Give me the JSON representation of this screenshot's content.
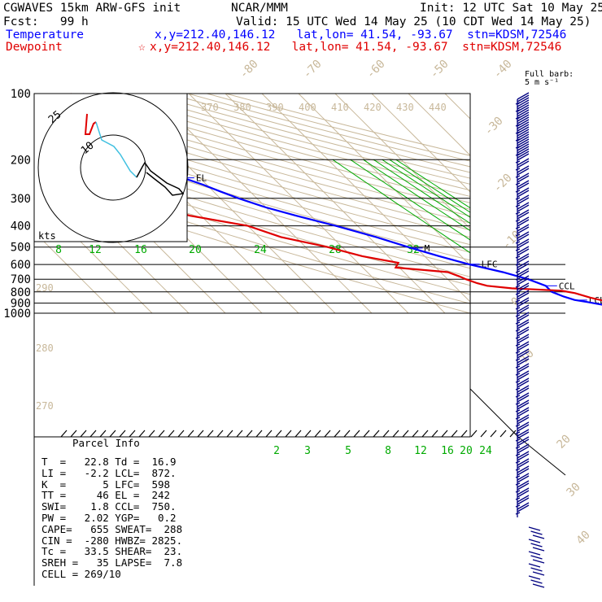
{
  "header": {
    "model_line": "CGWAVES 15km ARW-GFS init",
    "org": "NCAR/MMM",
    "init_line": "Init: 12 UTC Sat 10 May 25",
    "fcst_line": "Fcst:   99 h",
    "valid_line": "Valid: 15 UTC Wed 14 May 25 (10 CDT Wed 14 May 25)",
    "temp_label": "Temperature",
    "temp_loc": "x,y=212.40,146.12   lat,lon= 41.54, -93.67  stn=KDSM,72546",
    "dew_label": "Dewpoint",
    "dew_loc": "x,y=212.40,146.12   lat,lon= 41.54, -93.67  stn=KDSM,72546",
    "dew_marker": "☆",
    "colors": {
      "temperature": "#0000ff",
      "dewpoint": "#e00000",
      "text": "#000000"
    }
  },
  "barb_legend": {
    "line1": "Full barb:",
    "line2": "5 m s⁻¹"
  },
  "chart_data": {
    "type": "line",
    "title": "",
    "pressure_levels": [
      100,
      200,
      300,
      400,
      500,
      600,
      700,
      800,
      900,
      1000
    ],
    "pressure_range": [
      100,
      1000
    ],
    "temperature_series": {
      "name": "Temperature",
      "color": "#0000ff",
      "points": [
        [
          100,
          -69
        ],
        [
          120,
          -69
        ],
        [
          140,
          -67
        ],
        [
          160,
          -67
        ],
        [
          180,
          -67
        ],
        [
          200,
          -67
        ],
        [
          220,
          -67
        ],
        [
          240,
          -65
        ],
        [
          260,
          -61
        ],
        [
          280,
          -58
        ],
        [
          300,
          -55
        ],
        [
          330,
          -50
        ],
        [
          360,
          -44
        ],
        [
          400,
          -36
        ],
        [
          450,
          -28
        ],
        [
          500,
          -22
        ],
        [
          550,
          -16
        ],
        [
          600,
          -10
        ],
        [
          650,
          -3
        ],
        [
          700,
          2
        ],
        [
          750,
          5
        ],
        [
          780,
          5
        ],
        [
          800,
          5
        ],
        [
          840,
          7
        ],
        [
          870,
          9
        ],
        [
          890,
          12
        ],
        [
          920,
          16
        ],
        [
          950,
          19
        ],
        [
          960,
          20
        ]
      ]
    },
    "dewpoint_series": {
      "name": "Dewpoint",
      "color": "#e00000",
      "points": [
        [
          100,
          -72
        ],
        [
          110,
          -77
        ],
        [
          120,
          -79
        ],
        [
          140,
          -79
        ],
        [
          160,
          -82
        ],
        [
          180,
          -87
        ],
        [
          200,
          -90
        ],
        [
          220,
          -86
        ],
        [
          240,
          -78
        ],
        [
          260,
          -72
        ],
        [
          280,
          -70
        ],
        [
          300,
          -72
        ],
        [
          320,
          -76
        ],
        [
          340,
          -77
        ],
        [
          360,
          -73
        ],
        [
          400,
          -60
        ],
        [
          450,
          -54
        ],
        [
          500,
          -44
        ],
        [
          550,
          -37
        ],
        [
          590,
          -29
        ],
        [
          620,
          -31
        ],
        [
          650,
          -18
        ],
        [
          680,
          -16
        ],
        [
          700,
          -15
        ],
        [
          730,
          -13
        ],
        [
          750,
          -11
        ],
        [
          770,
          -5
        ],
        [
          790,
          8
        ],
        [
          810,
          11
        ],
        [
          850,
          14
        ],
        [
          870,
          16
        ],
        [
          880,
          17
        ],
        [
          900,
          17
        ],
        [
          920,
          17
        ],
        [
          950,
          17
        ]
      ]
    },
    "pressure_labels": [
      "100",
      "200",
      "300",
      "400",
      "500",
      "600",
      "700",
      "800",
      "900",
      "1000"
    ],
    "isotherm_labels": [
      "-80",
      "-70",
      "-60",
      "-50",
      "-40",
      "-30",
      "-20",
      "-10",
      "0",
      "10",
      "20",
      "30",
      "40"
    ],
    "isotherm_label_values": [
      -80,
      -70,
      -60,
      -50,
      -40,
      -30,
      -20,
      -10,
      0,
      10,
      20,
      30,
      40
    ],
    "theta_labels": [
      "370",
      "380",
      "390",
      "400",
      "410",
      "420",
      "430",
      "440"
    ],
    "theta_e_labels": [
      "290",
      "280",
      "270"
    ],
    "mixing_ratio_upper_labels": [
      "8",
      "12",
      "16",
      "20",
      "24",
      "28",
      "32"
    ],
    "mixing_ratio_upper_values": [
      8,
      12,
      16,
      20,
      24,
      28,
      32
    ],
    "mixing_ratio_lower_labels": [
      "2",
      "3",
      "5",
      "8",
      "12",
      "16",
      "20",
      "24"
    ],
    "mixing_ratio_lower_values": [
      2,
      3,
      5,
      8,
      12,
      16,
      20,
      24
    ],
    "level_markers": [
      {
        "label": "EL",
        "pressure": 242
      },
      {
        "label": "M",
        "pressure": 505
      },
      {
        "label": "LFC",
        "pressure": 598
      },
      {
        "label": "CCL",
        "pressure": 750
      },
      {
        "label": "LCL",
        "pressure": 872
      }
    ],
    "grid": true
  },
  "hodograph": {
    "ring_labels": [
      "25",
      "10"
    ],
    "axis_label": "kts"
  },
  "parcel_info": {
    "title": "Parcel Info",
    "rows": [
      "T  =   22.8 Td =  16.9",
      "LI =   -2.2 LCL=  872.",
      "K  =      5 LFC=  598",
      "TT =     46 EL =  242",
      "SWI=    1.8 CCL=  750.",
      "PW =   2.02 YGP=   0.2",
      "CAPE=   655 SWEAT=  288",
      "CIN =  -280 HWBZ= 2825.",
      "Tc =   33.5 SHEAR=  23.",
      "SREH =   35 LAPSE=  7.8",
      "CELL = 269/10"
    ]
  }
}
